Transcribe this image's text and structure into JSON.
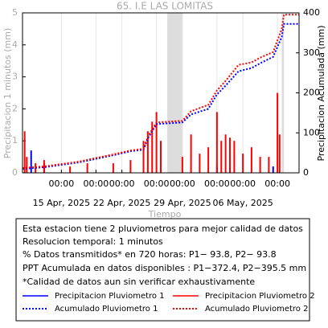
{
  "chart_data": {
    "type": "line",
    "title": "65. I.E LAS LOMITAS",
    "xlabel": "Tiempo",
    "ylabel": "Precipitacion 1 minutos (mm)",
    "y2label": "Precipitacion Acumulada (mm)",
    "xlim": [
      "2025-04-10T12:00",
      "2025-05-12T12:00"
    ],
    "ylim": [
      0,
      5
    ],
    "yticks": [
      0,
      1,
      2,
      3,
      4,
      5
    ],
    "y2lim": [
      0,
      400
    ],
    "y2ticks": [
      0,
      100,
      200,
      300,
      400
    ],
    "xticks": [
      {
        "value": "2025-04-15T00:00",
        "label": "00:00"
      },
      {
        "value": "2025-04-19T00:00",
        "label": "00:00"
      },
      {
        "value": "2025-04-22T00:00",
        "label": "00:00"
      },
      {
        "value": "2025-04-26T00:00",
        "label": "00:00"
      },
      {
        "value": "2025-04-29T00:00",
        "label": "00:00"
      },
      {
        "value": "2025-05-03T00:00",
        "label": "00:00"
      },
      {
        "value": "2025-05-06T00:00",
        "label": "00:00"
      },
      {
        "value": "2025-05-10T00:00",
        "label": "00:00"
      }
    ],
    "xdate_ticks": [
      {
        "value": "2025-04-15T00:00",
        "label": "15 Apr, 2025"
      },
      {
        "value": "2025-04-22T00:00",
        "label": "22 Apr, 2025"
      },
      {
        "value": "2025-04-29T00:00",
        "label": "29 Apr, 2025"
      },
      {
        "value": "2025-05-06T00:00",
        "label": "06 May, 2025"
      }
    ],
    "grid": true,
    "shaded": [
      [
        "2025-04-27T06:00",
        "2025-04-29T00:00"
      ],
      [
        "2025-05-10T12:00",
        "2025-05-10T18:00"
      ]
    ],
    "series": [
      {
        "name": "Precipitacion Pluviometro 1",
        "type": "bar",
        "color": "#0000ff",
        "x": [
          "2025-04-11T12:00",
          "2025-04-13T00:00",
          "2025-05-03T00:00",
          "2025-05-09T12:00"
        ],
        "values": [
          0.7,
          0.3,
          0.2,
          0.2
        ]
      },
      {
        "name": "Precipitacion Pluviometro 2",
        "type": "bar",
        "color": "#ff0000",
        "x": [
          "2025-04-10T18:00",
          "2025-04-11T00:00",
          "2025-04-12T00:00",
          "2025-04-13T00:00",
          "2025-04-16T00:00",
          "2025-04-18T00:00",
          "2025-04-21T00:00",
          "2025-04-23T00:00",
          "2025-04-24T12:00",
          "2025-04-25T00:00",
          "2025-04-25T12:00",
          "2025-04-26T00:00",
          "2025-04-26T12:00",
          "2025-04-29T00:00",
          "2025-04-30T00:00",
          "2025-05-01T00:00",
          "2025-05-02T00:00",
          "2025-05-03T00:00",
          "2025-05-03T12:00",
          "2025-05-04T00:00",
          "2025-05-04T12:00",
          "2025-05-05T00:00",
          "2025-05-06T00:00",
          "2025-05-07T00:00",
          "2025-05-08T00:00",
          "2025-05-09T00:00",
          "2025-05-10T00:00",
          "2025-05-10T06:00"
        ],
        "values": [
          1.3,
          0.5,
          0.3,
          0.4,
          0.2,
          0.3,
          0.3,
          0.4,
          1.0,
          1.3,
          1.6,
          1.9,
          1.0,
          0.5,
          1.2,
          0.6,
          0.8,
          1.9,
          1.0,
          1.2,
          1.1,
          1.0,
          0.6,
          0.8,
          0.5,
          0.5,
          2.5,
          1.2
        ]
      },
      {
        "name": "Acumulado Pluviometro 1",
        "type": "line",
        "axis": "y2",
        "color": "#0000ff",
        "x": [
          "2025-04-10T12:00",
          "2025-04-13T00:00",
          "2025-04-17T00:00",
          "2025-04-21T00:00",
          "2025-04-23T00:00",
          "2025-04-24T12:00",
          "2025-04-25T00:00",
          "2025-04-26T00:00",
          "2025-04-29T00:00",
          "2025-04-30T00:00",
          "2025-05-02T00:00",
          "2025-05-03T00:00",
          "2025-05-04T00:00",
          "2025-05-05T12:00",
          "2025-05-07T00:00",
          "2025-05-08T00:00",
          "2025-05-09T12:00",
          "2025-05-10T12:00",
          "2025-05-10T18:00",
          "2025-05-12T12:00"
        ],
        "values": [
          10,
          14,
          26,
          44,
          54,
          58,
          86,
          122,
          126,
          146,
          160,
          196,
          218,
          254,
          262,
          274,
          290,
          340,
          372.4,
          372.4
        ]
      },
      {
        "name": "Acumulado Pluviometro 2",
        "type": "line",
        "axis": "y2",
        "color": "#ff0000",
        "x": [
          "2025-04-10T12:00",
          "2025-04-13T00:00",
          "2025-04-17T00:00",
          "2025-04-21T00:00",
          "2025-04-23T00:00",
          "2025-04-24T12:00",
          "2025-04-25T00:00",
          "2025-04-26T00:00",
          "2025-04-29T00:00",
          "2025-04-30T00:00",
          "2025-05-02T00:00",
          "2025-05-03T00:00",
          "2025-05-04T00:00",
          "2025-05-05T12:00",
          "2025-05-07T00:00",
          "2025-05-08T00:00",
          "2025-05-09T12:00",
          "2025-05-10T12:00",
          "2025-05-10T18:00",
          "2025-05-12T12:00"
        ],
        "values": [
          12,
          16,
          28,
          46,
          56,
          60,
          90,
          126,
          130,
          154,
          170,
          206,
          230,
          270,
          276,
          288,
          302,
          360,
          395.5,
          395.5
        ]
      }
    ]
  },
  "info_box": {
    "lines": [
      "Esta estacion tiene 2 pluviometros para mejor calidad de datos",
      "Resolucion temporal: 1 minutos",
      "% Datos transmitidos* en 720 horas: P1− 93.8, P2− 93.8",
      "PPT Acumulada en datos disponibles : P1−372.4, P2−395.5 mm",
      "*Calidad de datos aun sin verificar exhaustivamente"
    ]
  }
}
